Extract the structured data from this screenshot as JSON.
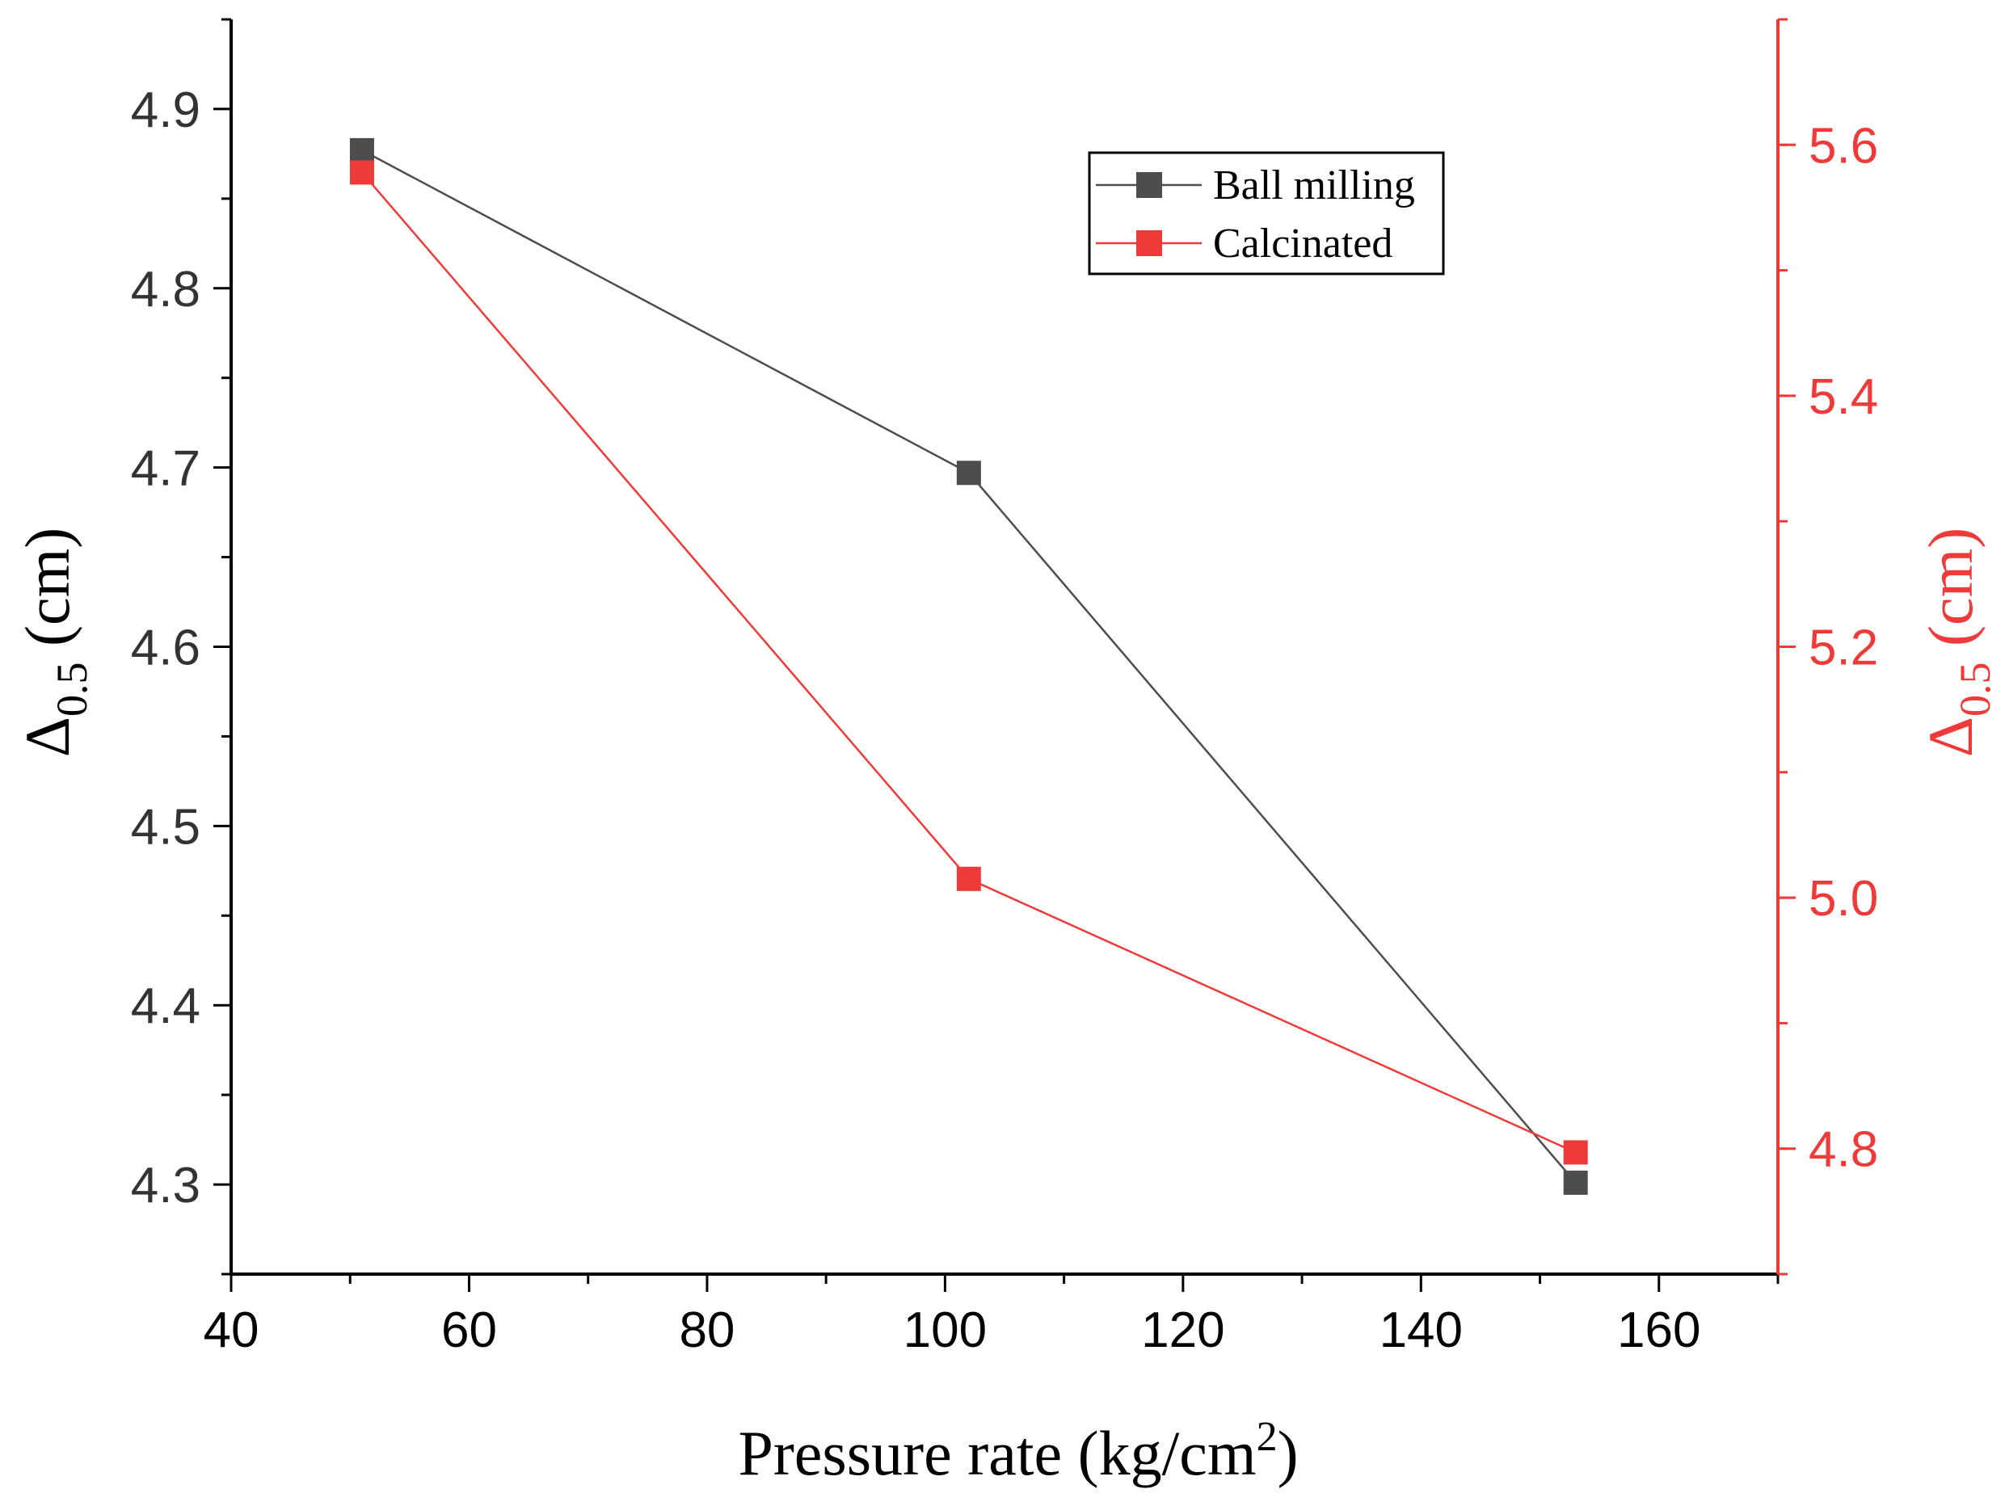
{
  "chart_data": {
    "type": "line",
    "title": "",
    "xlabel": "Pressure rate (kg/cm",
    "xlabel_sup": "2",
    "xlabel_close": ")",
    "ylabel_left": {
      "symbol": "Δ",
      "sub": "0.5",
      "unit": " (cm)"
    },
    "ylabel_right": {
      "symbol": "Δ",
      "sub": "0.5",
      "unit": " (cm)"
    },
    "xlim": [
      40,
      170
    ],
    "ylim_left": [
      4.25,
      4.95
    ],
    "ylim_right": [
      4.7,
      5.7
    ],
    "xticks": [
      40,
      60,
      80,
      100,
      120,
      140,
      160
    ],
    "xtick_labels": [
      "40",
      "60",
      "80",
      "100",
      "120",
      "140",
      "160"
    ],
    "yticks_left": [
      4.3,
      4.4,
      4.5,
      4.6,
      4.7,
      4.8,
      4.9
    ],
    "ytick_labels_left": [
      "4.3",
      "4.4",
      "4.5",
      "4.6",
      "4.7",
      "4.8",
      "4.9"
    ],
    "yticks_right": [
      4.8,
      5.0,
      5.2,
      5.4,
      5.6
    ],
    "ytick_labels_right": [
      "4.8",
      "5.0",
      "5.2",
      "5.4",
      "5.6"
    ],
    "legend_position": "top-right",
    "series": [
      {
        "name": "Ball milling",
        "axis": "left",
        "color": "#4d4d4d",
        "x": [
          51,
          102,
          153
        ],
        "values": [
          4.877,
          4.697,
          4.301
        ]
      },
      {
        "name": "Calcinated",
        "axis": "right",
        "color": "#ef3a3a",
        "x": [
          51,
          102,
          153
        ],
        "values": [
          5.578,
          5.015,
          4.797
        ]
      }
    ],
    "grid": false
  }
}
